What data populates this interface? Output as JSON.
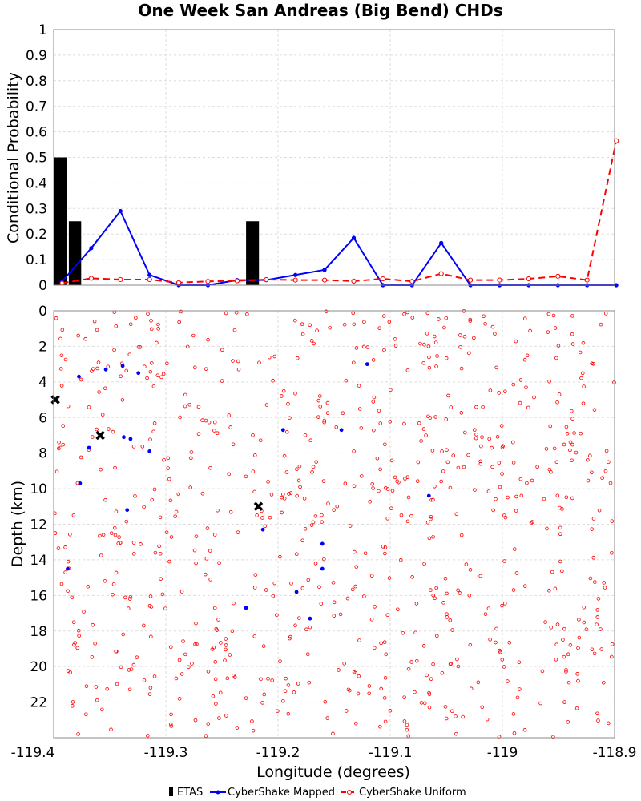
{
  "chart_data": {
    "title": "One Week San Andreas (Big Bend) CHDs",
    "xlabel": "Longitude (degrees)",
    "xlim": [
      -119.4,
      -118.9
    ],
    "x_ticks": [
      -119.4,
      -119.3,
      -119.2,
      -119.1,
      -119,
      -118.9
    ],
    "x_tick_labels": [
      "-119.4",
      "-119.3",
      "-119.2",
      "-119.1",
      "-119",
      "-118.9"
    ],
    "legend": [
      {
        "label": "ETAS",
        "color": "#000000",
        "marker": "bar"
      },
      {
        "label": "CyberShake Mapped",
        "color": "#0000ff",
        "marker": "solid-dot"
      },
      {
        "label": "CyberShake Uniform",
        "color": "#ff0000",
        "marker": "dashed-open-circle"
      }
    ],
    "legend_position": "bottom-center",
    "panels": [
      {
        "type": "bar+line",
        "ylabel": "Conditional Probability",
        "ylim": [
          0,
          1
        ],
        "y_ticks": [
          0,
          0.1,
          0.2,
          0.3,
          0.4,
          0.5,
          0.6,
          0.7,
          0.8,
          0.9,
          1
        ],
        "y_tick_labels": [
          "0",
          "0.1",
          "0.2",
          "0.3",
          "0.4",
          "0.5",
          "0.6",
          "0.7",
          "0.8",
          "0.9",
          "1"
        ],
        "grid": true,
        "etas_bars": [
          {
            "x_start": -119.4,
            "x_end": -119.3885,
            "value": 0.5
          },
          {
            "x_start": -119.3865,
            "x_end": -119.3755,
            "value": 0.25
          },
          {
            "x_start": -119.2285,
            "x_end": -119.217,
            "value": 0.25
          }
        ],
        "series": [
          {
            "name": "CyberShake Mapped",
            "color": "#0000ff",
            "x": [
              -119.3925,
              -119.3665,
              -119.3405,
              -119.3145,
              -119.2885,
              -119.2625,
              -119.2365,
              -119.2105,
              -119.1845,
              -119.1585,
              -119.1325,
              -119.1065,
              -119.0805,
              -119.0545,
              -119.0285,
              -119.0025,
              -118.9765,
              -118.9505,
              -118.9245,
              -118.8985
            ],
            "y": [
              0.015,
              0.145,
              0.29,
              0.04,
              0.0,
              0.0,
              0.02,
              0.02,
              0.04,
              0.06,
              0.185,
              0.0,
              0.0,
              0.165,
              0.0,
              0.0,
              0.0,
              0.0,
              0.0,
              0.0
            ]
          },
          {
            "name": "CyberShake Uniform",
            "color": "#ff0000",
            "x": [
              -119.3925,
              -119.3665,
              -119.3405,
              -119.3145,
              -119.2885,
              -119.2625,
              -119.2365,
              -119.2105,
              -119.1845,
              -119.1585,
              -119.1325,
              -119.1065,
              -119.0805,
              -119.0545,
              -119.0285,
              -119.0025,
              -118.9765,
              -118.9505,
              -118.9245,
              -118.8985
            ],
            "y": [
              0.008,
              0.027,
              0.022,
              0.022,
              0.01,
              0.015,
              0.017,
              0.022,
              0.02,
              0.02,
              0.016,
              0.025,
              0.015,
              0.045,
              0.02,
              0.02,
              0.025,
              0.035,
              0.02,
              0.565
            ]
          }
        ]
      },
      {
        "type": "scatter",
        "ylabel": "Depth (km)",
        "ylim": [
          0,
          24
        ],
        "y_inverted": true,
        "y_ticks": [
          0,
          2,
          4,
          6,
          8,
          10,
          12,
          14,
          16,
          18,
          20,
          22
        ],
        "y_tick_labels": [
          "0",
          "2",
          "4",
          "6",
          "8",
          "10",
          "12",
          "14",
          "16",
          "18",
          "20",
          "22"
        ],
        "grid": true,
        "etas_hypocenters": [
          {
            "x": -119.3985,
            "depth": 5.0
          },
          {
            "x": -119.3585,
            "depth": 7.0
          },
          {
            "x": -119.2175,
            "depth": 11.0
          }
        ],
        "mapped_points": [
          {
            "x": -119.3775,
            "depth": 3.7
          },
          {
            "x": -119.3535,
            "depth": 3.3
          },
          {
            "x": -119.3385,
            "depth": 3.1
          },
          {
            "x": -119.3245,
            "depth": 3.5
          },
          {
            "x": -119.3685,
            "depth": 7.7
          },
          {
            "x": -119.3375,
            "depth": 7.1
          },
          {
            "x": -119.3315,
            "depth": 7.2
          },
          {
            "x": -119.3145,
            "depth": 7.9
          },
          {
            "x": -119.3765,
            "depth": 9.7
          },
          {
            "x": -119.3345,
            "depth": 11.2
          },
          {
            "x": -119.3875,
            "depth": 14.5
          },
          {
            "x": -119.1955,
            "depth": 6.7
          },
          {
            "x": -119.1435,
            "depth": 6.7
          },
          {
            "x": -119.1205,
            "depth": 3.0
          },
          {
            "x": -119.0655,
            "depth": 10.4
          },
          {
            "x": -119.2135,
            "depth": 12.3
          },
          {
            "x": -119.1605,
            "depth": 13.1
          },
          {
            "x": -119.1605,
            "depth": 14.5
          },
          {
            "x": -119.1835,
            "depth": 15.8
          },
          {
            "x": -119.2285,
            "depth": 16.7
          },
          {
            "x": -119.1715,
            "depth": 17.3
          }
        ],
        "uniform_points_count": 800,
        "uniform_points_note": "dense uniform spread of small open red circles over the full longitude range and depth 0-24 km"
      }
    ]
  },
  "colors": {
    "etas": "#000000",
    "mapped": "#0000ff",
    "uniform": "#ff0000",
    "grid": "#dddddd",
    "axis": "#888888"
  }
}
